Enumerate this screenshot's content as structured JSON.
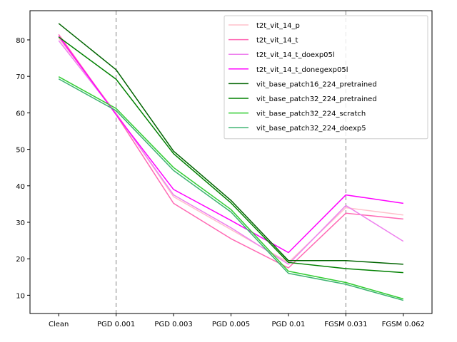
{
  "chart_data": {
    "type": "line",
    "categories": [
      "Clean",
      "PGD 0.001",
      "PGD 0.003",
      "PGD 0.005",
      "PGD 0.01",
      "FGSM 0.031",
      "FGSM 0.062"
    ],
    "ylim": [
      5,
      88
    ],
    "yticks": [
      10,
      20,
      30,
      40,
      50,
      60,
      70,
      80
    ],
    "vlines_at": [
      "PGD 0.001",
      "FGSM 0.031"
    ],
    "legend_position": "upper right",
    "grid": false,
    "series": [
      {
        "name": "t2t_vit_14_p",
        "color": "#ffc0cb",
        "values": [
          80.5,
          60.0,
          37.0,
          28.0,
          19.0,
          34.0,
          32.0
        ]
      },
      {
        "name": "t2t_vit_14_t",
        "color": "#ff69b4",
        "values": [
          81.5,
          59.5,
          35.2,
          25.5,
          17.5,
          32.5,
          30.9
        ]
      },
      {
        "name": "t2t_vit_14_t_doexp05l",
        "color": "#ee82ee",
        "values": [
          79.8,
          59.7,
          37.5,
          28.5,
          18.5,
          34.6,
          24.8
        ]
      },
      {
        "name": "t2t_vit_14_t_donegexp05l",
        "color": "#ff00ff",
        "values": [
          81.0,
          59.5,
          39.0,
          30.5,
          21.7,
          37.5,
          35.2
        ]
      },
      {
        "name": "vit_base_patch16_224_pretrained",
        "color": "#006400",
        "values": [
          84.5,
          71.8,
          49.5,
          36.0,
          19.5,
          19.5,
          18.5
        ]
      },
      {
        "name": "vit_base_patch32_224_pretrained",
        "color": "#008000",
        "values": [
          80.8,
          69.2,
          48.8,
          35.3,
          19.0,
          17.3,
          16.2
        ]
      },
      {
        "name": "vit_base_patch32_224_scratch",
        "color": "#32cd32",
        "values": [
          69.9,
          61.2,
          45.0,
          33.5,
          16.6,
          13.5,
          9.0
        ]
      },
      {
        "name": "vit_base_patch32_224_doexp5",
        "color": "#3cb371",
        "values": [
          69.3,
          60.6,
          44.2,
          32.8,
          16.0,
          13.0,
          8.6
        ]
      }
    ]
  }
}
